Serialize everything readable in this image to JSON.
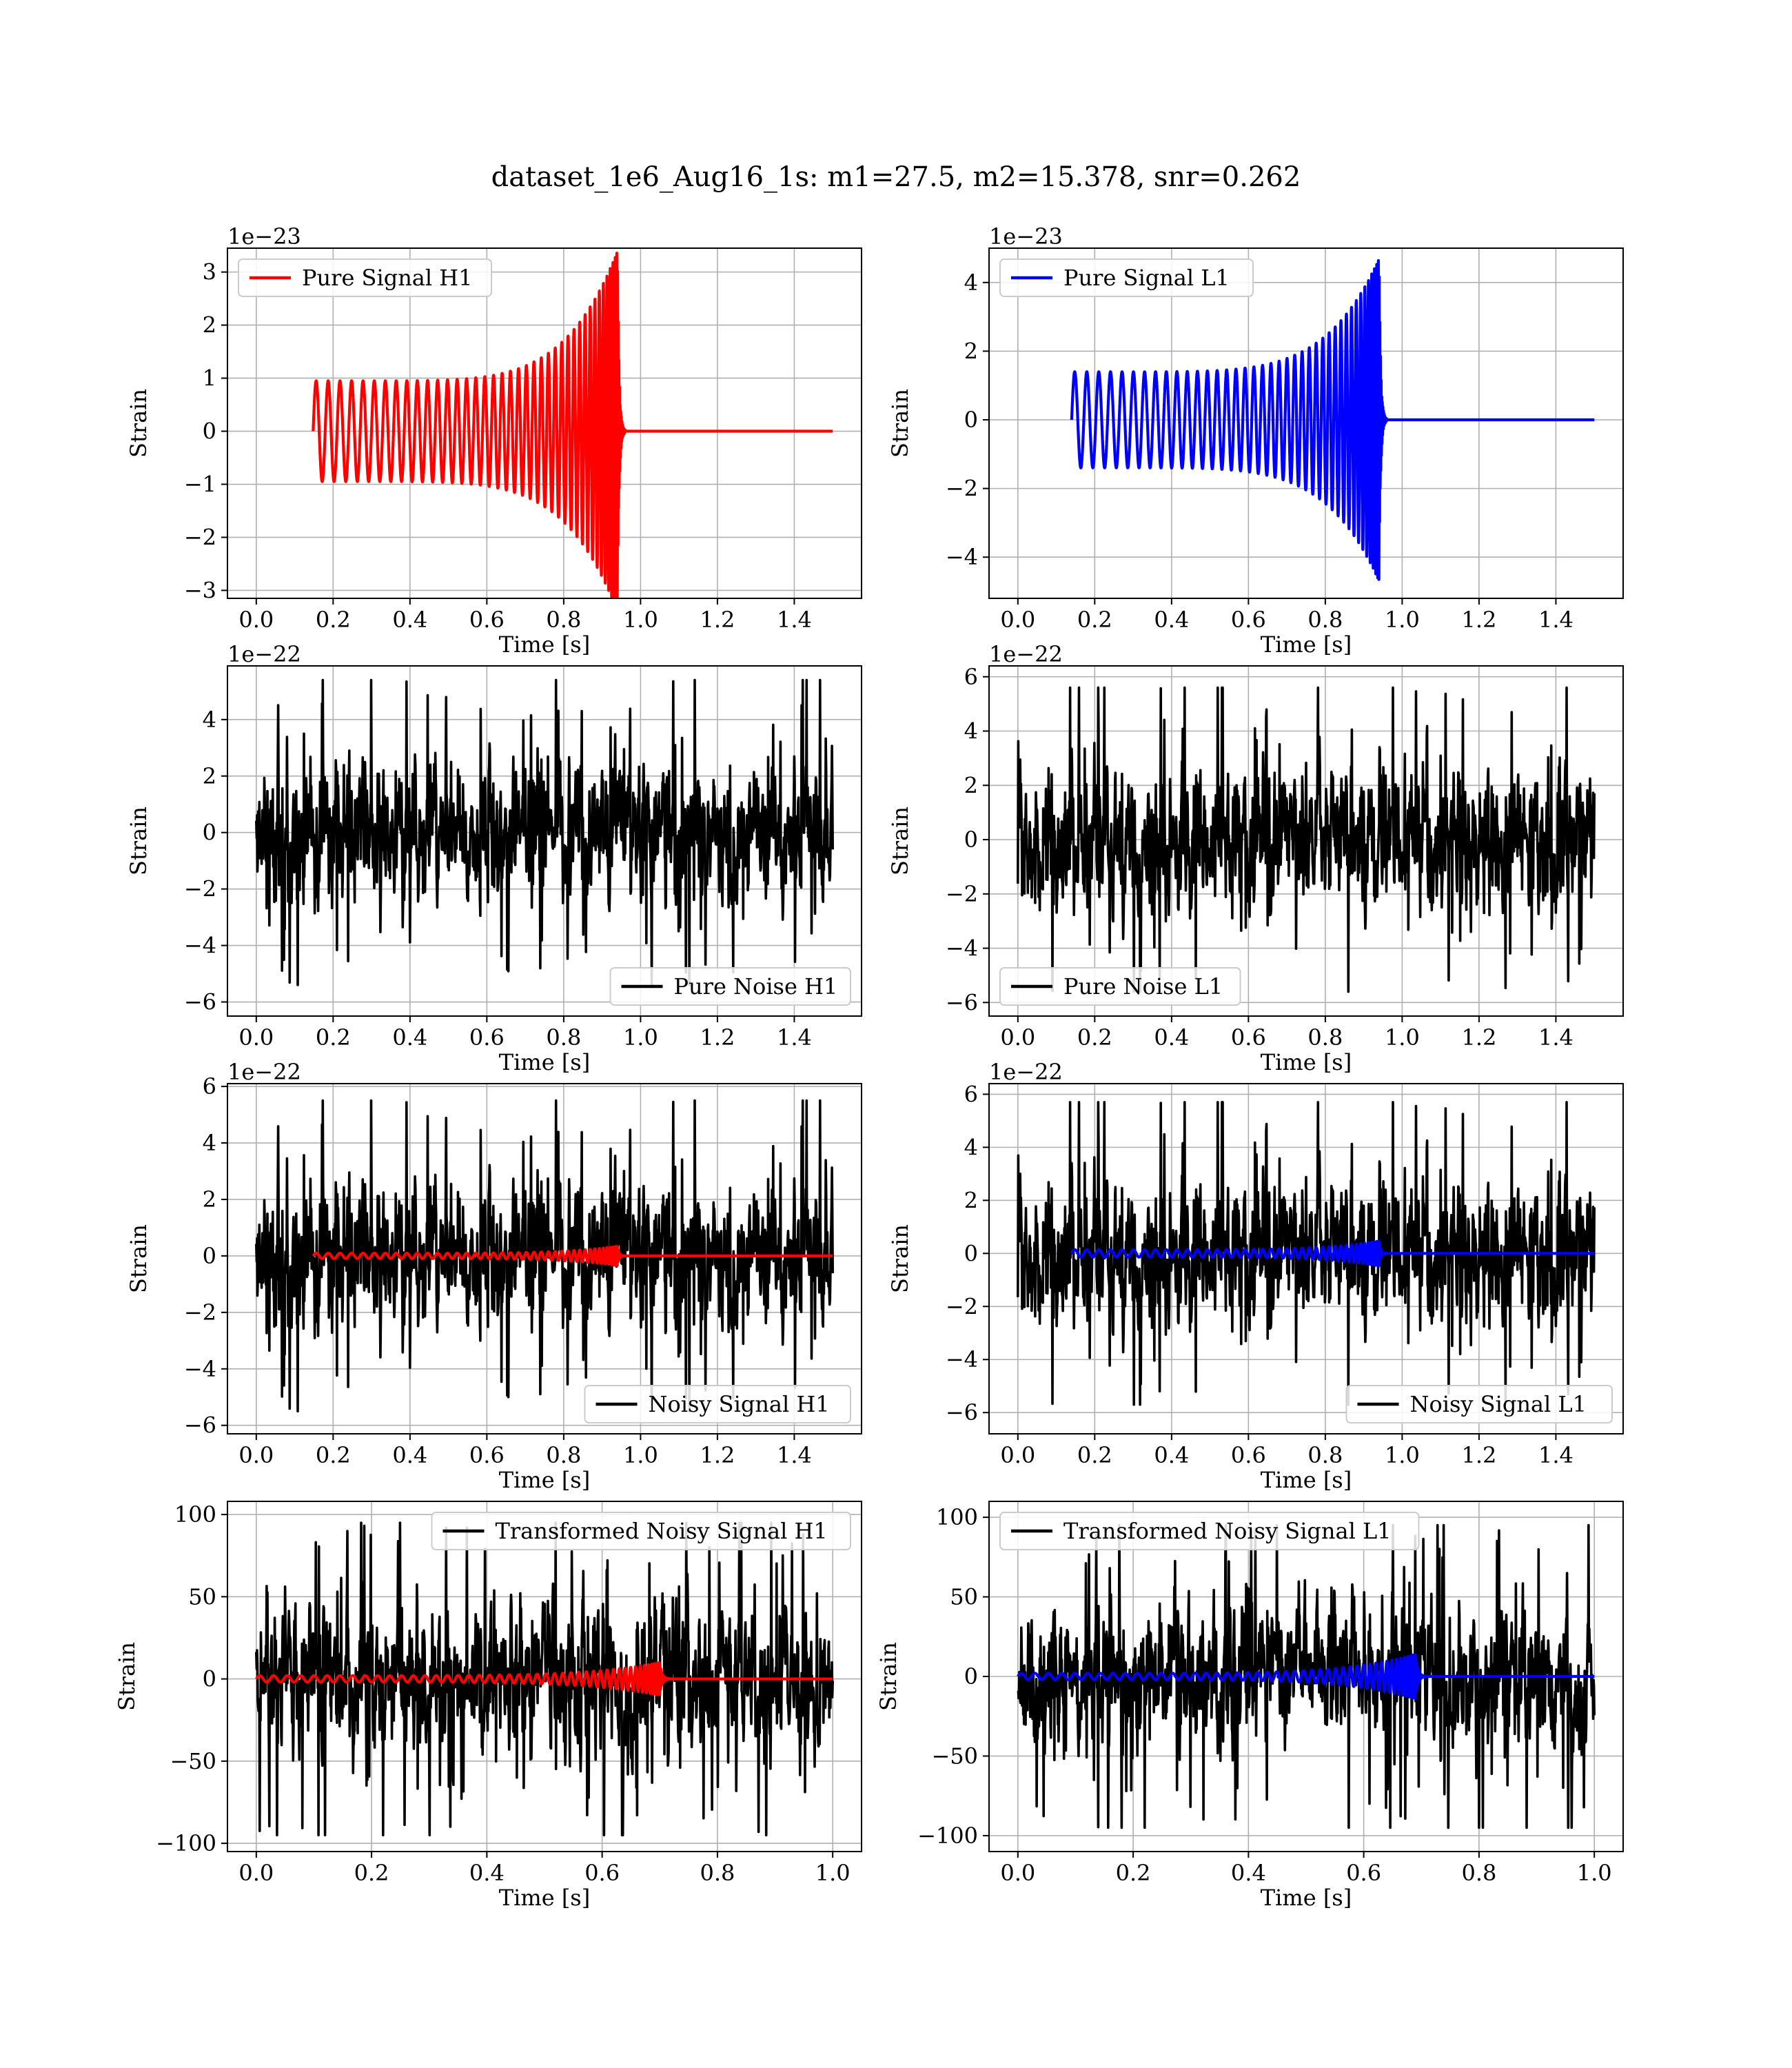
{
  "title": "dataset_1e6_Aug16_1s: m1=27.5, m2=15.378, snr=0.262",
  "colors": {
    "H1": "#ff0000",
    "L1": "#0000ff",
    "noise": "#000000",
    "grid": "#b0b0b0"
  },
  "chart_data": [
    {
      "id": "pure-signal-h1",
      "type": "line",
      "xlabel": "Time [s]",
      "ylabel": "Strain",
      "offset": "1e−23",
      "xlim": [
        -0.075,
        1.575
      ],
      "ylim": [
        -3.15,
        3.45
      ],
      "xticks": [
        "0.0",
        "0.2",
        "0.4",
        "0.6",
        "0.8",
        "1.0",
        "1.2",
        "1.4"
      ],
      "yticks": [
        "−3",
        "−2",
        "−1",
        "0",
        "1",
        "2",
        "3"
      ],
      "legend": "top-left",
      "grid": true,
      "series": [
        {
          "name": "Pure Signal H1",
          "color": "#ff0000",
          "kind": "chirp",
          "t_start": 0.148,
          "t_merge": 0.94,
          "t_end": 1.5,
          "amp_start": 0.95,
          "amp_peak": 3.4,
          "cycles": 40
        }
      ]
    },
    {
      "id": "pure-signal-l1",
      "type": "line",
      "xlabel": "Time [s]",
      "ylabel": "Strain",
      "offset": "1e−23",
      "xlim": [
        -0.075,
        1.575
      ],
      "ylim": [
        -5.2,
        5.0
      ],
      "xticks": [
        "0.0",
        "0.2",
        "0.4",
        "0.6",
        "0.8",
        "1.0",
        "1.2",
        "1.4"
      ],
      "yticks": [
        "−4",
        "−2",
        "0",
        "2",
        "4"
      ],
      "legend": "top-left",
      "grid": true,
      "series": [
        {
          "name": "Pure Signal L1",
          "color": "#0000ff",
          "kind": "chirp",
          "t_start": 0.14,
          "t_merge": 0.94,
          "t_end": 1.5,
          "amp_start": 1.4,
          "amp_peak": 4.7,
          "cycles": 40
        }
      ]
    },
    {
      "id": "pure-noise-h1",
      "type": "line",
      "xlabel": "Time [s]",
      "ylabel": "Strain",
      "offset": "1e−22",
      "xlim": [
        -0.075,
        1.575
      ],
      "ylim": [
        -6.5,
        5.9
      ],
      "xticks": [
        "0.0",
        "0.2",
        "0.4",
        "0.6",
        "0.8",
        "1.0",
        "1.2",
        "1.4"
      ],
      "yticks": [
        "−6",
        "−4",
        "−2",
        "0",
        "2",
        "4"
      ],
      "legend": "bottom-right",
      "grid": true,
      "series": [
        {
          "name": "Pure Noise H1",
          "color": "#000000",
          "kind": "noise",
          "t_start": 0.0,
          "t_end": 1.5,
          "amp": 5.4,
          "seed": 11
        }
      ]
    },
    {
      "id": "pure-noise-l1",
      "type": "line",
      "xlabel": "Time [s]",
      "ylabel": "Strain",
      "offset": "1e−22",
      "xlim": [
        -0.075,
        1.575
      ],
      "ylim": [
        -6.5,
        6.4
      ],
      "xticks": [
        "0.0",
        "0.2",
        "0.4",
        "0.6",
        "0.8",
        "1.0",
        "1.2",
        "1.4"
      ],
      "yticks": [
        "−6",
        "−4",
        "−2",
        "0",
        "2",
        "4",
        "6"
      ],
      "legend": "bottom-left",
      "grid": true,
      "series": [
        {
          "name": "Pure Noise L1",
          "color": "#000000",
          "kind": "noise",
          "t_start": 0.0,
          "t_end": 1.5,
          "amp": 5.6,
          "seed": 23
        }
      ]
    },
    {
      "id": "noisy-signal-h1",
      "type": "line",
      "xlabel": "Time [s]",
      "ylabel": "Strain",
      "offset": "1e−22",
      "xlim": [
        -0.075,
        1.575
      ],
      "ylim": [
        -6.3,
        6.1
      ],
      "xticks": [
        "0.0",
        "0.2",
        "0.4",
        "0.6",
        "0.8",
        "1.0",
        "1.2",
        "1.4"
      ],
      "yticks": [
        "−6",
        "−4",
        "−2",
        "0",
        "2",
        "4",
        "6"
      ],
      "legend": "bottom-right",
      "grid": true,
      "series": [
        {
          "name": "Noisy Signal H1",
          "color": "#000000",
          "kind": "noise",
          "t_start": 0.0,
          "t_end": 1.5,
          "amp": 5.5,
          "seed": 11
        },
        {
          "color": "#ff0000",
          "kind": "chirp",
          "t_start": 0.148,
          "t_merge": 0.94,
          "t_end": 1.5,
          "amp_start": 0.095,
          "amp_peak": 0.34,
          "cycles": 40
        }
      ]
    },
    {
      "id": "noisy-signal-l1",
      "type": "line",
      "xlabel": "Time [s]",
      "ylabel": "Strain",
      "offset": "1e−22",
      "xlim": [
        -0.075,
        1.575
      ],
      "ylim": [
        -6.8,
        6.4
      ],
      "xticks": [
        "0.0",
        "0.2",
        "0.4",
        "0.6",
        "0.8",
        "1.0",
        "1.2",
        "1.4"
      ],
      "yticks": [
        "−6",
        "−4",
        "−2",
        "0",
        "2",
        "4",
        "6"
      ],
      "legend": "bottom-right",
      "grid": true,
      "series": [
        {
          "name": "Noisy Signal L1",
          "color": "#000000",
          "kind": "noise",
          "t_start": 0.0,
          "t_end": 1.5,
          "amp": 5.7,
          "seed": 23
        },
        {
          "color": "#0000ff",
          "kind": "chirp",
          "t_start": 0.14,
          "t_merge": 0.94,
          "t_end": 1.5,
          "amp_start": 0.14,
          "amp_peak": 0.47,
          "cycles": 40
        }
      ]
    },
    {
      "id": "transformed-noisy-signal-h1",
      "type": "line",
      "xlabel": "Time [s]",
      "ylabel": "Strain",
      "offset": "",
      "xlim": [
        -0.05,
        1.05
      ],
      "ylim": [
        -105,
        108
      ],
      "xticks": [
        "0.0",
        "0.2",
        "0.4",
        "0.6",
        "0.8",
        "1.0"
      ],
      "yticks": [
        "−100",
        "−50",
        "0",
        "50",
        "100"
      ],
      "legend": "top-right",
      "grid": true,
      "series": [
        {
          "name": "Transformed Noisy Signal H1",
          "color": "#000000",
          "kind": "noise",
          "t_start": 0.0,
          "t_end": 1.0,
          "amp": 95,
          "seed": 41
        },
        {
          "color": "#ff0000",
          "kind": "chirp",
          "t_start": 0.0,
          "t_merge": 0.7,
          "t_end": 1.0,
          "amp_start": 2,
          "amp_peak": 10,
          "cycles": 46
        }
      ]
    },
    {
      "id": "transformed-noisy-signal-l1",
      "type": "line",
      "xlabel": "Time [s]",
      "ylabel": "Strain",
      "offset": "",
      "xlim": [
        -0.05,
        1.05
      ],
      "ylim": [
        -110,
        110
      ],
      "xticks": [
        "0.0",
        "0.2",
        "0.4",
        "0.6",
        "0.8",
        "1.0"
      ],
      "yticks": [
        "−100",
        "−50",
        "0",
        "50",
        "100"
      ],
      "legend": "top-left",
      "grid": true,
      "series": [
        {
          "name": "Transformed Noisy Signal L1",
          "color": "#000000",
          "kind": "noise",
          "t_start": 0.0,
          "t_end": 1.0,
          "amp": 95,
          "seed": 57
        },
        {
          "color": "#0000ff",
          "kind": "chirp",
          "t_start": 0.0,
          "t_merge": 0.69,
          "t_end": 1.0,
          "amp_start": 2,
          "amp_peak": 14,
          "cycles": 46
        }
      ]
    }
  ]
}
